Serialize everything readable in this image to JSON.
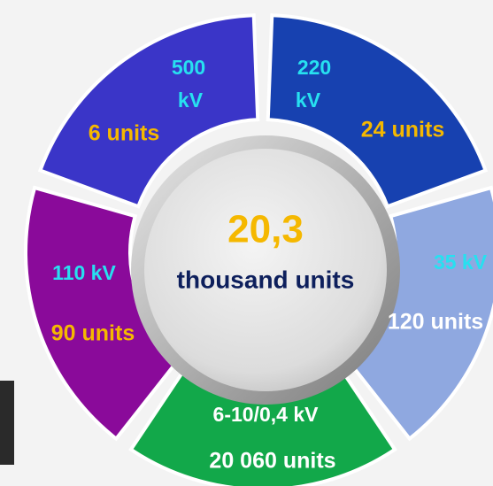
{
  "center": {
    "value": "20,3",
    "label": "thousand units"
  },
  "segments": [
    {
      "voltage_lines": [
        "500",
        "kV"
      ],
      "units": "6 units"
    },
    {
      "voltage_lines": [
        "220",
        "kV"
      ],
      "units": "24 units"
    },
    {
      "voltage_lines": [
        "35 kV"
      ],
      "units": "120 units"
    },
    {
      "voltage_lines": [
        "6-10/0,4 kV"
      ],
      "units": "20 060 units"
    },
    {
      "voltage_lines": [
        "110 kV"
      ],
      "units": "90 units"
    }
  ]
}
